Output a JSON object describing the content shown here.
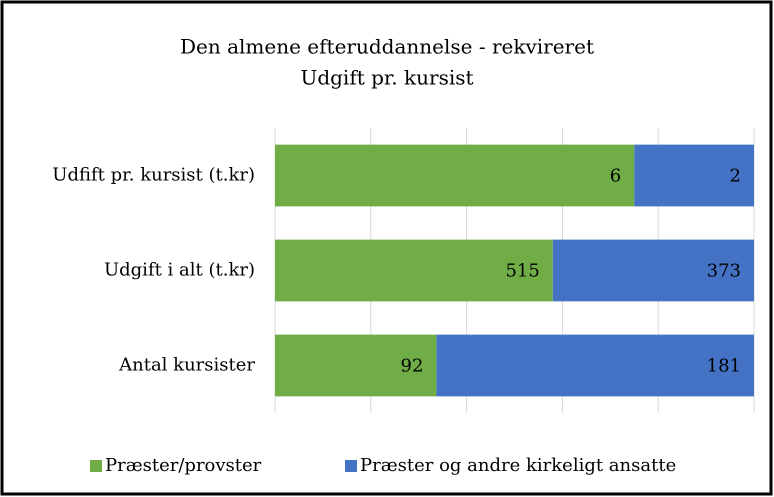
{
  "chart_data": {
    "type": "bar",
    "orientation": "horizontal",
    "stacked": "percent",
    "title": [
      "Den almene efteruddannelse - rekvireret",
      "Udgift pr. kursist"
    ],
    "categories": [
      "Udfift pr. kursist (t.kr)",
      "Udgift i alt (t.kr)",
      "Antal kursister"
    ],
    "series": [
      {
        "name": "Præster/provster",
        "color": "#70ad47",
        "values": [
          6,
          515,
          92
        ]
      },
      {
        "name": "Præster og andre kirkeligt ansatte",
        "color": "#4472c4",
        "values": [
          2,
          373,
          181
        ]
      }
    ],
    "xlim": [
      0,
      100
    ],
    "xticks": [
      0,
      20,
      40,
      60,
      80,
      100
    ],
    "grid": true,
    "legend": "bottom"
  }
}
